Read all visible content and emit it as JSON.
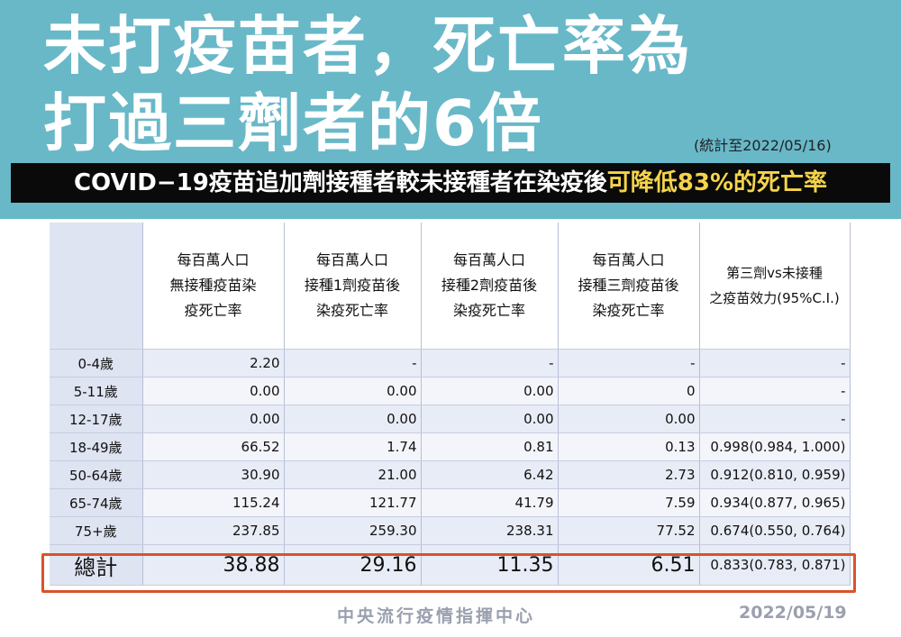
{
  "headline": {
    "line1": "未打疫苗者，死亡率為",
    "line2": "打過三劑者的6倍"
  },
  "stat_note": "(統計至2022/05/16)",
  "banner": {
    "text_main": "COVID−19疫苗追加劑接種者較未接種者在染疫後",
    "text_highlight": "可降低83%的死亡率"
  },
  "table": {
    "headers": [
      "",
      "每百萬人口\n無接種疫苗染\n疫死亡率",
      "每百萬人口\n接種1劑疫苗後\n染疫死亡率",
      "每百萬人口\n接種2劑疫苗後\n染疫死亡率",
      "每百萬人口\n接種三劑疫苗後\n染疫死亡率",
      "第三劑vs未接種\n之疫苗效力(95%C.I.)"
    ],
    "rows": [
      [
        "0-4歲",
        "2.20",
        "-",
        "-",
        "-",
        "-"
      ],
      [
        "5-11歲",
        "0.00",
        "0.00",
        "0.00",
        "0",
        "-"
      ],
      [
        "12-17歲",
        "0.00",
        "0.00",
        "0.00",
        "0.00",
        "-"
      ],
      [
        "18-49歲",
        "66.52",
        "1.74",
        "0.81",
        "0.13",
        "0.998(0.984, 1.000)"
      ],
      [
        "50-64歲",
        "30.90",
        "21.00",
        "6.42",
        "2.73",
        "0.912(0.810, 0.959)"
      ],
      [
        "65-74歲",
        "115.24",
        "121.77",
        "41.79",
        "7.59",
        "0.934(0.877, 0.965)"
      ],
      [
        "75+歲",
        "237.85",
        "259.30",
        "238.31",
        "77.52",
        "0.674(0.550, 0.764)"
      ]
    ],
    "total": [
      "總計",
      "38.88",
      "29.16",
      "11.35",
      "6.51",
      "0.833(0.783, 0.871)"
    ]
  },
  "footer": {
    "org": "中央流行疫情指揮中心",
    "date": "2022/05/19"
  },
  "colors": {
    "top_band": "#68b8c8",
    "banner_bg": "#0a0a0a",
    "banner_highlight": "#f5d44a",
    "total_frame": "#d9532b"
  }
}
